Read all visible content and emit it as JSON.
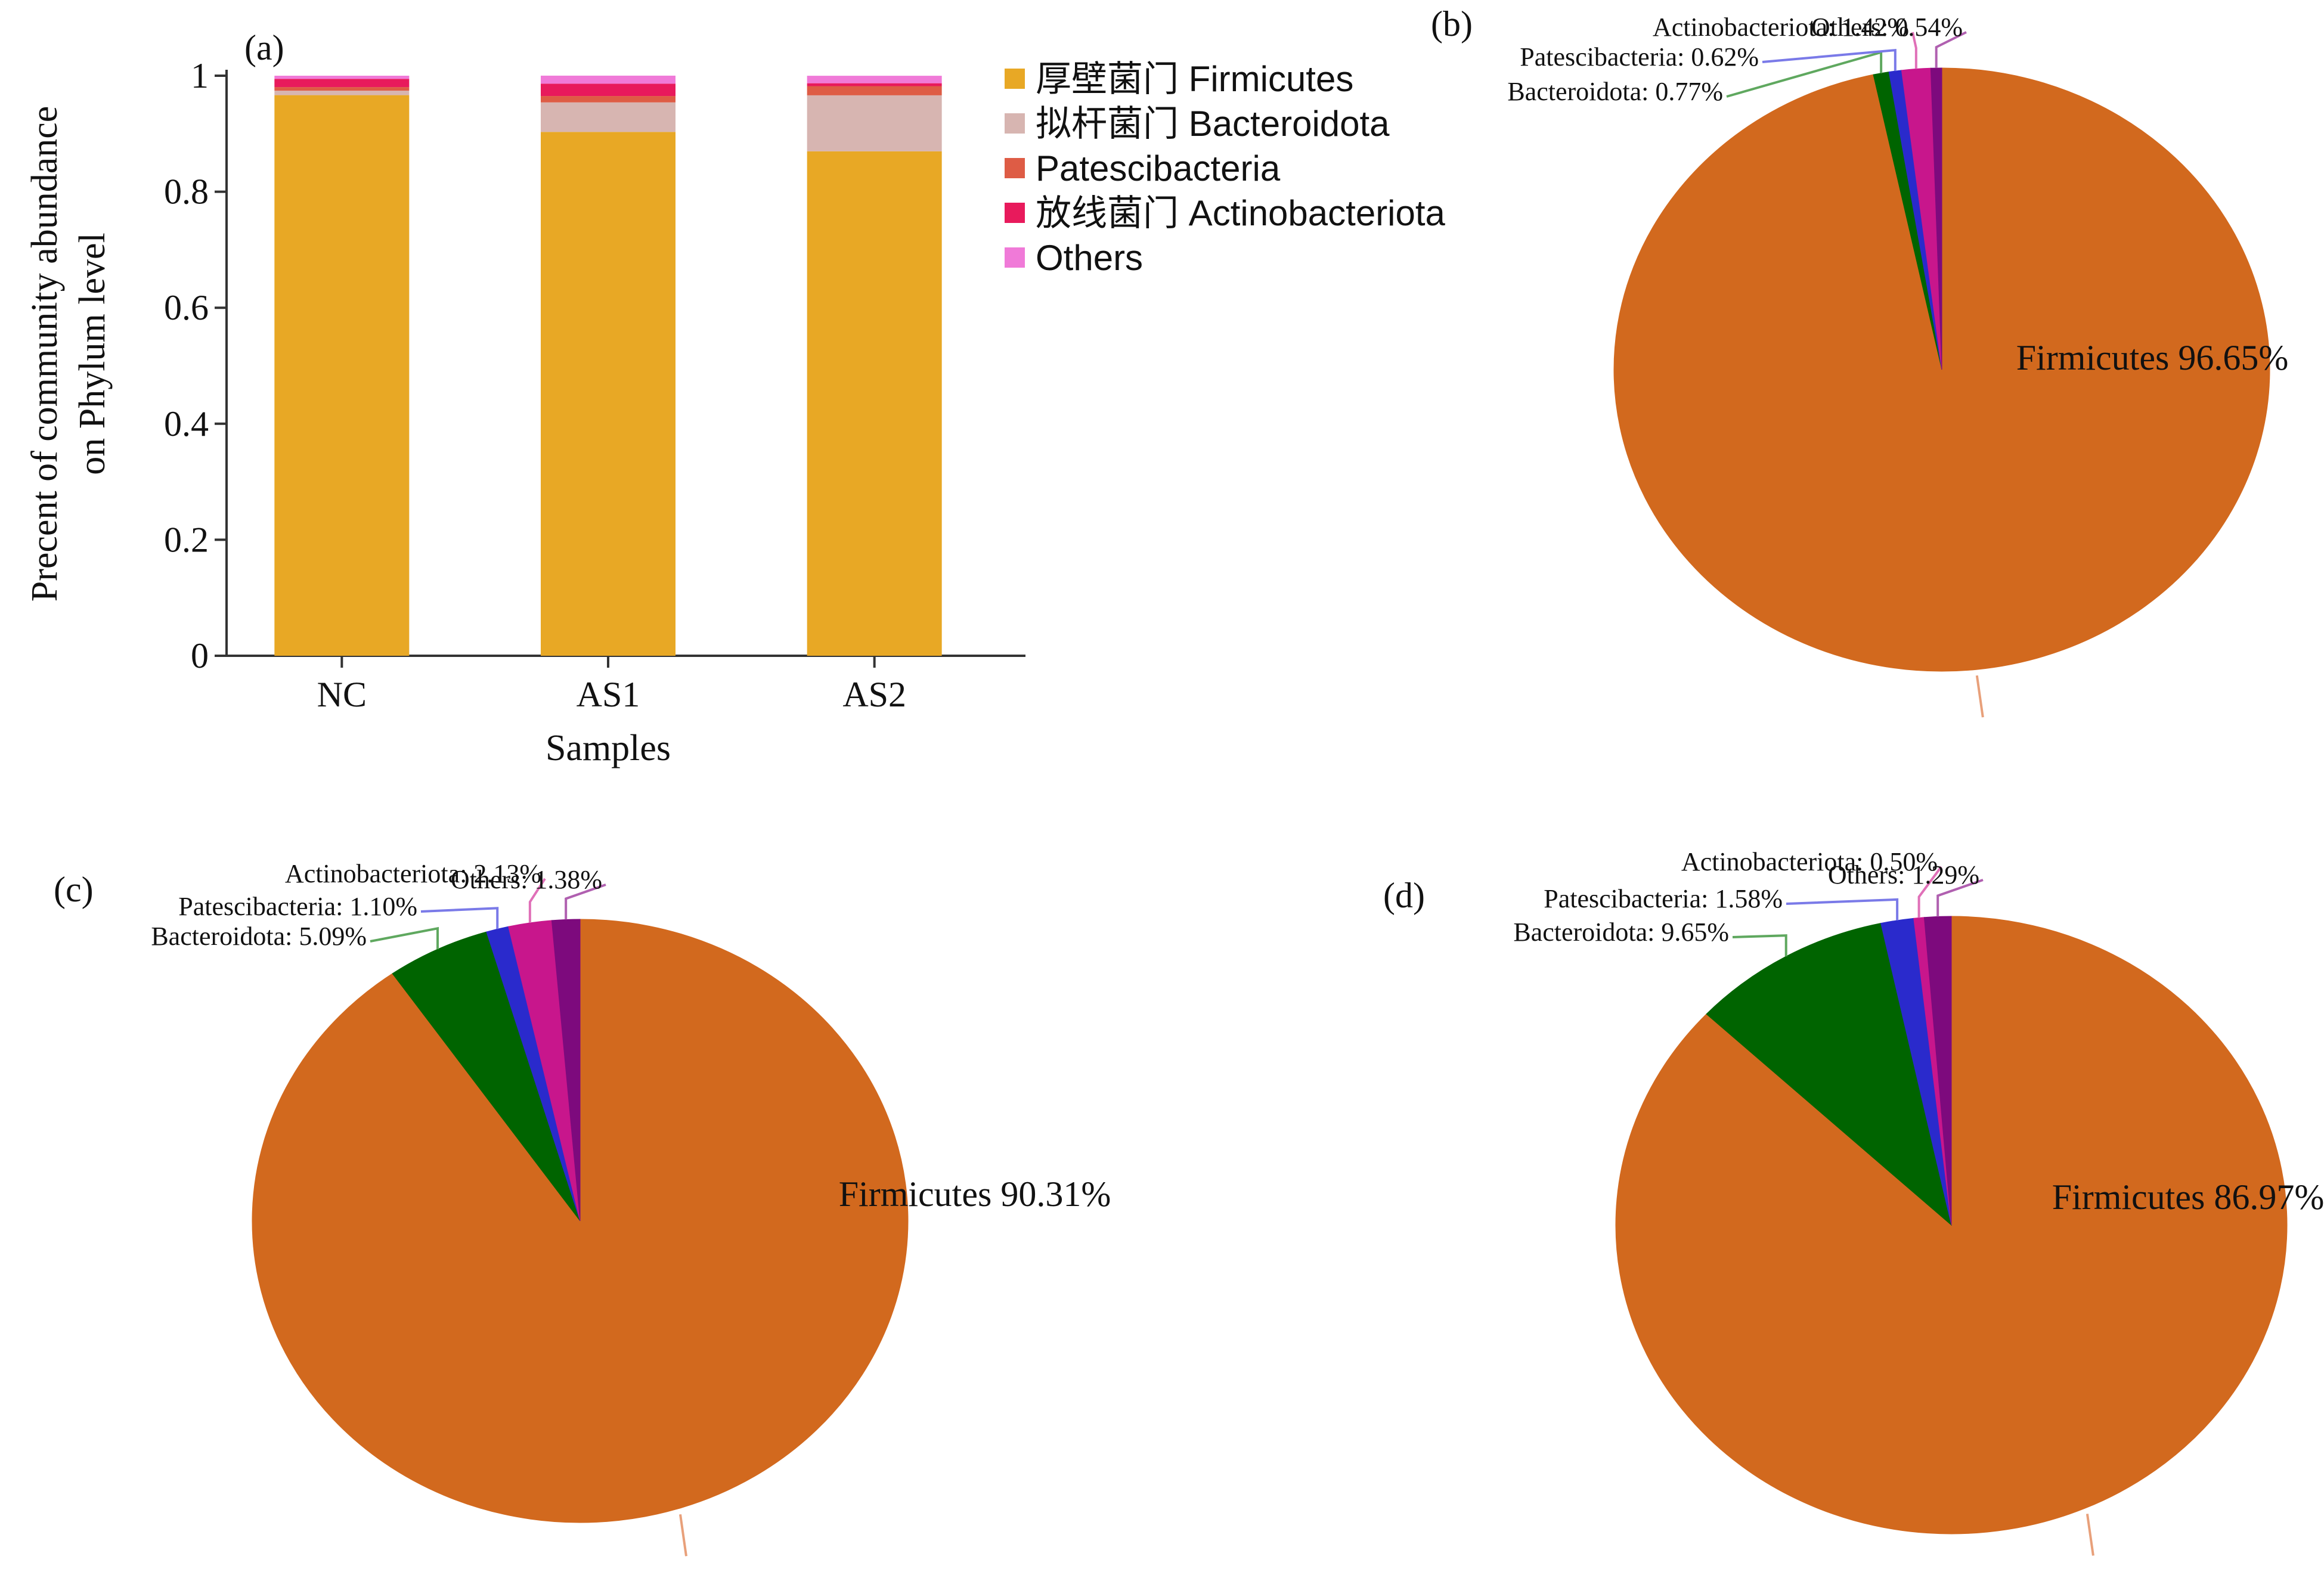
{
  "chart_data": [
    {
      "panel": "(a)",
      "type": "bar",
      "stacked": true,
      "categories": [
        "NC",
        "AS1",
        "AS2"
      ],
      "series": [
        {
          "name": "厚壁菌门 Firmicutes",
          "color": "#E8A825",
          "values": [
            0.9665,
            0.9031,
            0.8697
          ]
        },
        {
          "name": "拟杆菌门 Bacteroidota",
          "color": "#D7B5B1",
          "values": [
            0.0077,
            0.0509,
            0.0965
          ]
        },
        {
          "name": "Patescibacteria",
          "color": "#DE5C45",
          "values": [
            0.0062,
            0.011,
            0.0158
          ]
        },
        {
          "name": "放线菌门 Actinobacteriota",
          "color": "#E81A5C",
          "values": [
            0.0142,
            0.0213,
            0.005
          ]
        },
        {
          "name": "Others",
          "color": "#F07AD8",
          "values": [
            0.0054,
            0.0138,
            0.0129
          ]
        }
      ],
      "xlabel": "Samples",
      "ylabel": [
        "Precent of community abundance",
        "on Phylum level"
      ],
      "ylim": [
        0,
        1
      ],
      "yticks": [
        "0",
        "0.2",
        "0.4",
        "0.6",
        "0.8",
        "1"
      ],
      "legend": "right",
      "grid": false
    },
    {
      "panel": "(b)",
      "type": "pie",
      "slices": [
        {
          "label": "Firmicutes",
          "value": 96.65,
          "text": "Firmicutes 96.65%",
          "color": "#D2691E",
          "leader": "#E8A07A"
        },
        {
          "label": "Bacteroidota",
          "value": 0.77,
          "text": "Bacteroidota: 0.77%",
          "color": "#006400",
          "leader": "#5FA85F"
        },
        {
          "label": "Patescibacteria",
          "value": 0.62,
          "text": "Patescibacteria: 0.62%",
          "color": "#2A2ACC",
          "leader": "#7A7AE8"
        },
        {
          "label": "Actinobacteriota",
          "value": 1.42,
          "text": "Actinobacteriota: 1.42%",
          "color": "#C8168C",
          "leader": "#E070B8"
        },
        {
          "label": "Others",
          "value": 0.54,
          "text": "Others: 0.54%",
          "color": "#7D0A7D",
          "leader": "#B060B0"
        }
      ]
    },
    {
      "panel": "(c)",
      "type": "pie",
      "slices": [
        {
          "label": "Firmicutes",
          "value": 90.31,
          "text": "Firmicutes 90.31%",
          "color": "#D2691E",
          "leader": "#E8A07A"
        },
        {
          "label": "Bacteroidota",
          "value": 5.09,
          "text": "Bacteroidota: 5.09%",
          "color": "#006400",
          "leader": "#5FA85F"
        },
        {
          "label": "Patescibacteria",
          "value": 1.1,
          "text": "Patescibacteria: 1.10%",
          "color": "#2A2ACC",
          "leader": "#7A7AE8"
        },
        {
          "label": "Actinobacteriota",
          "value": 2.13,
          "text": "Actinobacteriota: 2.13%",
          "color": "#C8168C",
          "leader": "#E070B8"
        },
        {
          "label": "Others",
          "value": 1.38,
          "text": "Others: 1.38%",
          "color": "#7D0A7D",
          "leader": "#B060B0"
        }
      ]
    },
    {
      "panel": "(d)",
      "type": "pie",
      "slices": [
        {
          "label": "Firmicutes",
          "value": 86.97,
          "text": "Firmicutes 86.97%",
          "color": "#D2691E",
          "leader": "#E8A07A"
        },
        {
          "label": "Bacteroidota",
          "value": 9.65,
          "text": "Bacteroidota: 9.65%",
          "color": "#006400",
          "leader": "#5FA85F"
        },
        {
          "label": "Patescibacteria",
          "value": 1.58,
          "text": "Patescibacteria: 1.58%",
          "color": "#2A2ACC",
          "leader": "#7A7AE8"
        },
        {
          "label": "Actinobacteriota",
          "value": 0.5,
          "text": "Actinobacteriota: 0.50%",
          "color": "#C8168C",
          "leader": "#E070B8"
        },
        {
          "label": "Others",
          "value": 1.29,
          "text": "Others: 1.29%",
          "color": "#7D0A7D",
          "leader": "#B060B0"
        }
      ]
    }
  ]
}
